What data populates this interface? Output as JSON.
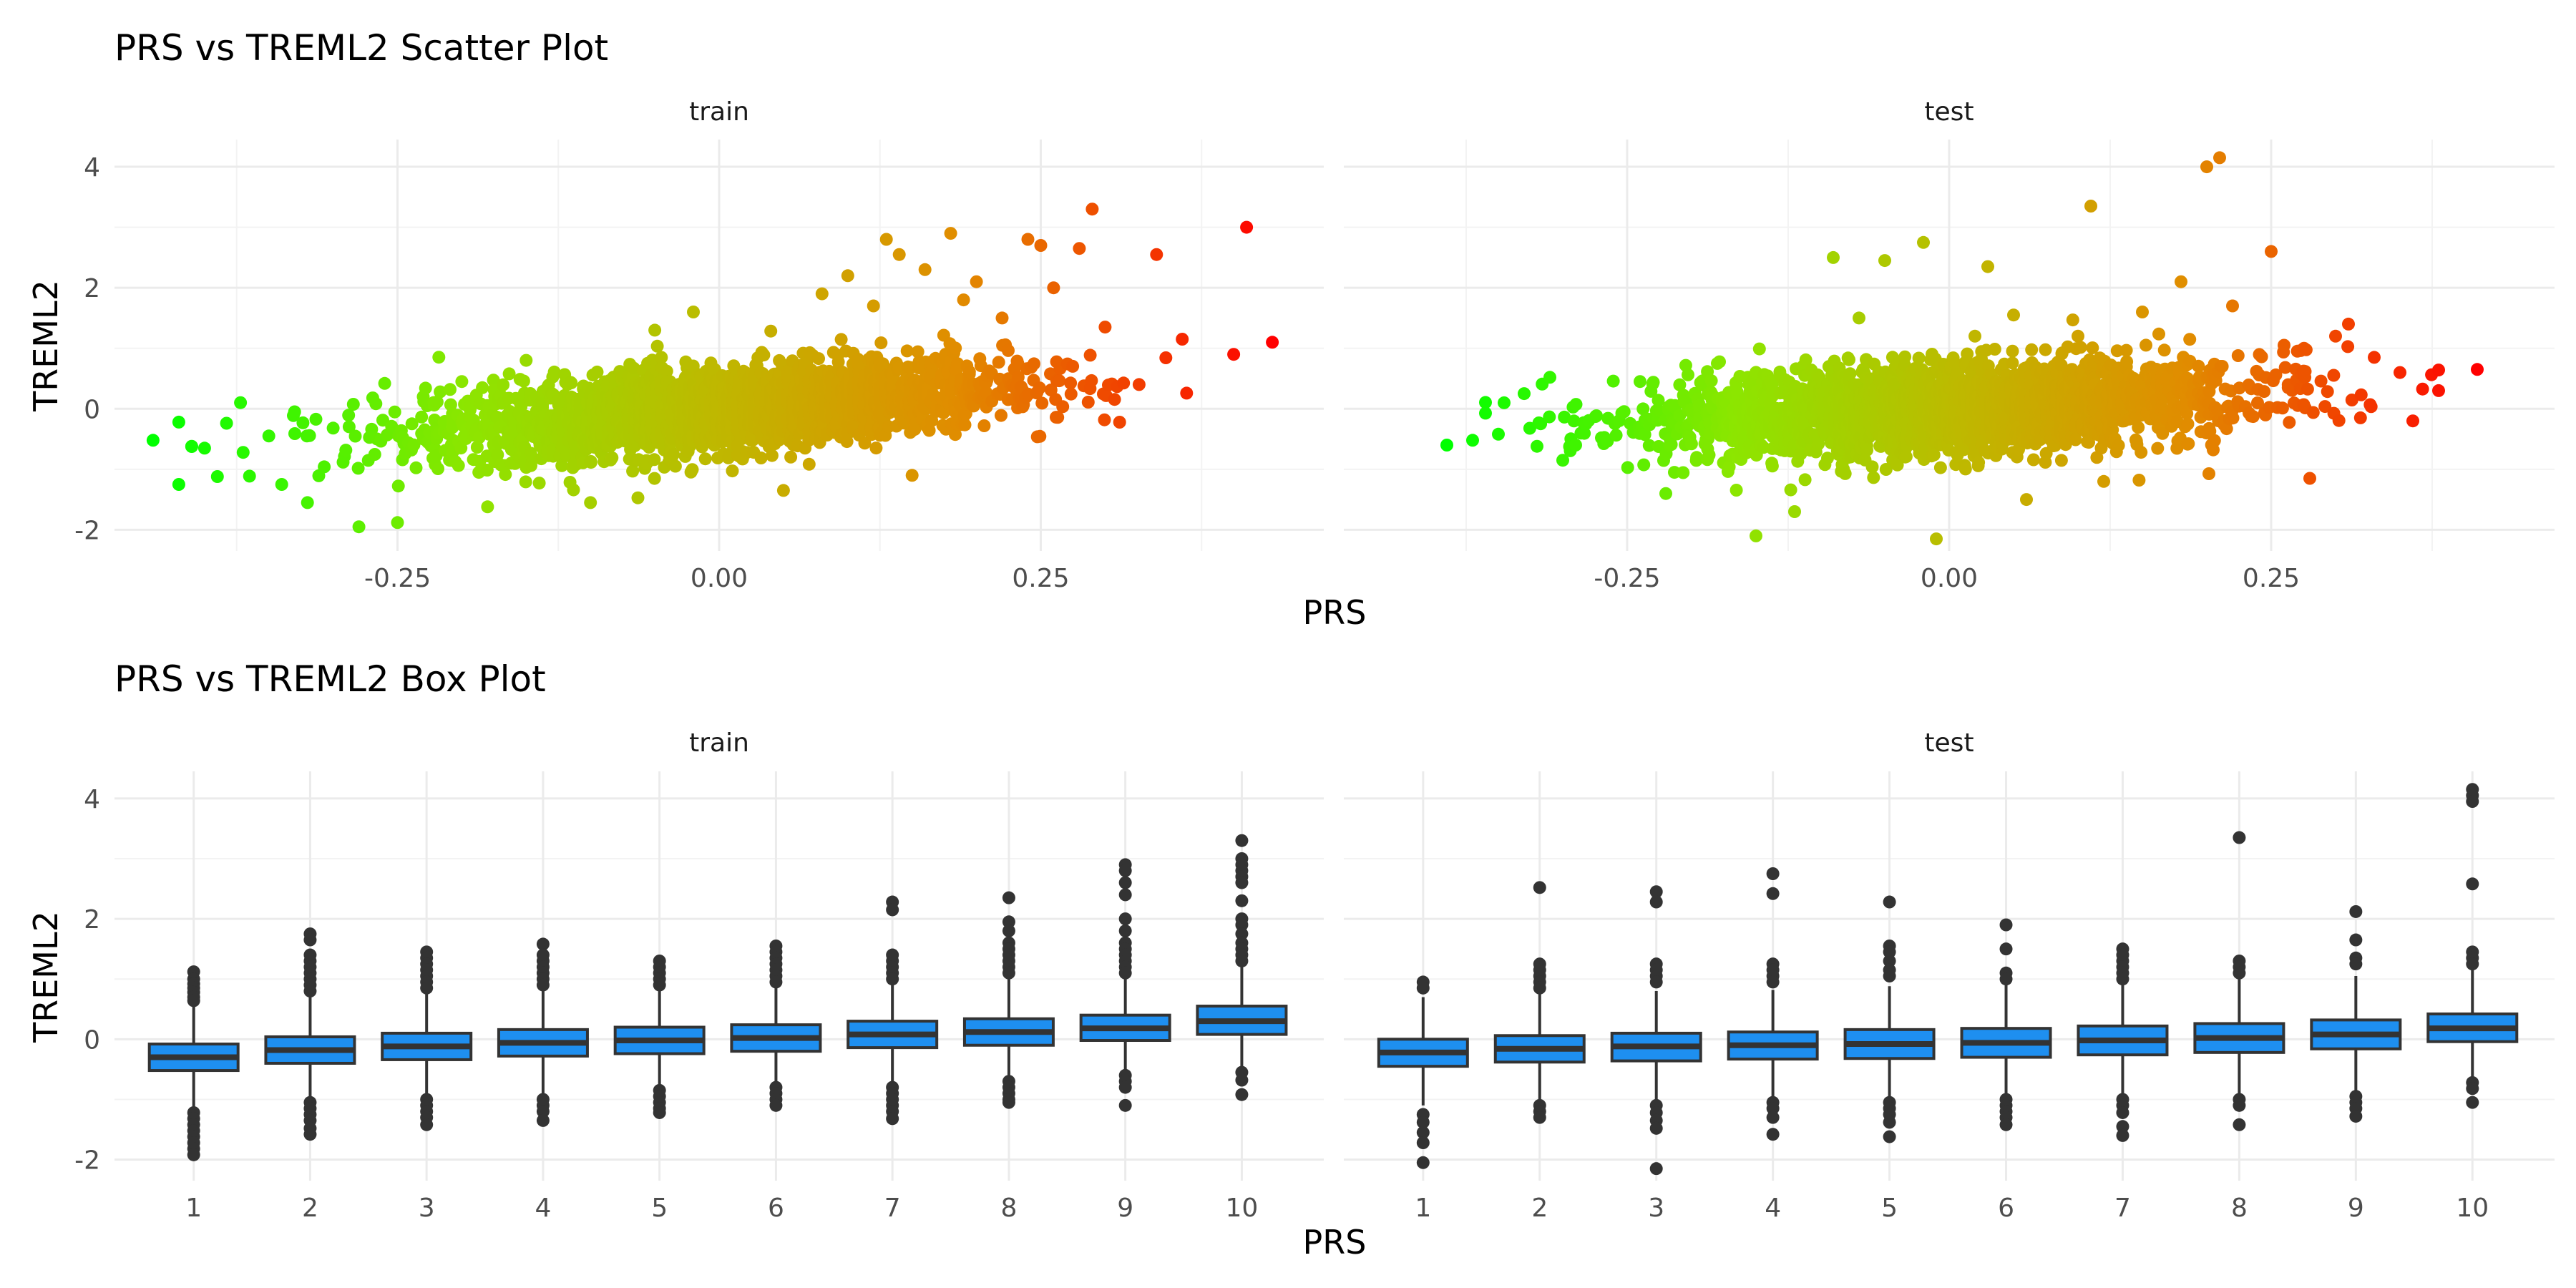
{
  "chart_data": [
    {
      "type": "scatter",
      "title": "PRS vs TREML2 Scatter Plot",
      "xlabel": "PRS",
      "ylabel": "TREML2",
      "facets": [
        "train",
        "test"
      ],
      "xlim": [
        -0.47,
        0.47
      ],
      "ylim": [
        -2.35,
        4.45
      ],
      "x_ticks": [
        -0.25,
        0.0,
        0.25
      ],
      "x_tick_labels": [
        "-0.25",
        "0.00",
        "0.25"
      ],
      "y_ticks": [
        -2,
        0,
        2,
        4
      ],
      "y_tick_labels": [
        "-2",
        "0",
        "2",
        "4"
      ],
      "grid": true,
      "legend": "none",
      "color_gradient": {
        "low": "#00ff00",
        "high": "#ff0000",
        "mapped_to": "PRS"
      },
      "series": [
        {
          "facet": "train",
          "trend": {
            "slope": 1.65,
            "intercept": 0.0,
            "spread": 0.34
          },
          "x_range": [
            -0.44,
            0.43
          ],
          "points": [
            [
              -0.44,
              -0.52
            ],
            [
              -0.42,
              -0.22
            ],
            [
              -0.42,
              -1.25
            ],
            [
              -0.41,
              -0.62
            ],
            [
              -0.4,
              -0.65
            ],
            [
              -0.39,
              -1.12
            ],
            [
              -0.37,
              -0.72
            ],
            [
              -0.35,
              -0.45
            ],
            [
              -0.34,
              -1.25
            ],
            [
              -0.33,
              -0.05
            ],
            [
              -0.32,
              -1.55
            ],
            [
              -0.3,
              -0.32
            ],
            [
              -0.28,
              -1.95
            ],
            [
              -0.26,
              0.42
            ],
            [
              -0.25,
              -1.88
            ],
            [
              -0.23,
              0.2
            ],
            [
              -0.2,
              0.45
            ],
            [
              -0.18,
              -1.62
            ],
            [
              -0.15,
              0.8
            ],
            [
              -0.1,
              -1.55
            ],
            [
              -0.05,
              1.3
            ],
            [
              -0.02,
              1.6
            ],
            [
              0.05,
              -1.35
            ],
            [
              0.08,
              1.9
            ],
            [
              0.1,
              2.2
            ],
            [
              0.12,
              1.7
            ],
            [
              0.13,
              2.8
            ],
            [
              0.14,
              2.55
            ],
            [
              0.15,
              -1.1
            ],
            [
              0.16,
              2.3
            ],
            [
              0.18,
              2.9
            ],
            [
              0.19,
              1.8
            ],
            [
              0.2,
              2.1
            ],
            [
              0.22,
              1.5
            ],
            [
              0.24,
              2.8
            ],
            [
              0.25,
              2.7
            ],
            [
              0.26,
              2.0
            ],
            [
              0.28,
              2.65
            ],
            [
              0.29,
              3.3
            ],
            [
              0.3,
              1.35
            ],
            [
              0.34,
              2.55
            ],
            [
              0.36,
              1.15
            ],
            [
              0.4,
              0.9
            ],
            [
              0.41,
              3.0
            ],
            [
              0.43,
              1.1
            ]
          ]
        },
        {
          "facet": "test",
          "trend": {
            "slope": 0.95,
            "intercept": 0.0,
            "spread": 0.36
          },
          "x_range": [
            -0.39,
            0.41
          ],
          "points": [
            [
              -0.39,
              -0.6
            ],
            [
              -0.37,
              -0.52
            ],
            [
              -0.35,
              -0.42
            ],
            [
              -0.33,
              0.25
            ],
            [
              -0.32,
              -0.62
            ],
            [
              -0.31,
              0.52
            ],
            [
              -0.3,
              -0.85
            ],
            [
              -0.29,
              -0.6
            ],
            [
              -0.27,
              -0.48
            ],
            [
              -0.24,
              0.45
            ],
            [
              -0.22,
              -1.4
            ],
            [
              -0.18,
              0.75
            ],
            [
              -0.15,
              -2.1
            ],
            [
              -0.12,
              -1.7
            ],
            [
              -0.09,
              2.5
            ],
            [
              -0.07,
              1.5
            ],
            [
              -0.05,
              2.45
            ],
            [
              -0.02,
              2.75
            ],
            [
              -0.01,
              -2.15
            ],
            [
              0.02,
              1.2
            ],
            [
              0.03,
              2.35
            ],
            [
              0.05,
              1.55
            ],
            [
              0.06,
              -1.5
            ],
            [
              0.1,
              1.2
            ],
            [
              0.11,
              3.35
            ],
            [
              0.12,
              -1.2
            ],
            [
              0.15,
              1.6
            ],
            [
              0.18,
              2.1
            ],
            [
              0.2,
              4.0
            ],
            [
              0.21,
              4.15
            ],
            [
              0.22,
              1.7
            ],
            [
              0.25,
              2.6
            ],
            [
              0.26,
              1.05
            ],
            [
              0.28,
              -1.15
            ],
            [
              0.3,
              1.2
            ],
            [
              0.31,
              1.4
            ],
            [
              0.33,
              0.85
            ],
            [
              0.35,
              0.6
            ],
            [
              0.36,
              -0.2
            ],
            [
              0.38,
              0.3
            ],
            [
              0.41,
              0.65
            ]
          ]
        }
      ]
    },
    {
      "type": "box",
      "title": "PRS vs TREML2 Box Plot",
      "xlabel": "PRS",
      "ylabel": "TREML2",
      "facets": [
        "train",
        "test"
      ],
      "categories": [
        "1",
        "2",
        "3",
        "4",
        "5",
        "6",
        "7",
        "8",
        "9",
        "10"
      ],
      "ylim": [
        -2.35,
        4.45
      ],
      "y_ticks": [
        -2,
        0,
        2,
        4
      ],
      "y_tick_labels": [
        "-2",
        "0",
        "2",
        "4"
      ],
      "grid": true,
      "legend": "none",
      "box_fill": "#1e8ff0",
      "series": [
        {
          "facet": "train",
          "boxes": [
            {
              "q1": -0.52,
              "median": -0.3,
              "q3": -0.08,
              "whisker_low": -1.15,
              "whisker_high": 0.58,
              "outliers": [
                1.12,
                1.0,
                0.92,
                0.85,
                0.78,
                0.7,
                0.64,
                -1.22,
                -1.32,
                -1.42,
                -1.52,
                -1.62,
                -1.72,
                -1.82,
                -1.92
              ]
            },
            {
              "q1": -0.4,
              "median": -0.18,
              "q3": 0.04,
              "whisker_low": -1.0,
              "whisker_high": 0.7,
              "outliers": [
                1.75,
                1.65,
                1.4,
                1.3,
                1.2,
                1.1,
                1.0,
                0.9,
                0.8,
                -1.05,
                -1.15,
                -1.25,
                -1.35,
                -1.48,
                -1.58
              ]
            },
            {
              "q1": -0.34,
              "median": -0.12,
              "q3": 0.1,
              "whisker_low": -0.95,
              "whisker_high": 0.75,
              "outliers": [
                1.45,
                1.35,
                1.25,
                1.15,
                1.05,
                0.95,
                0.85,
                -1.0,
                -1.1,
                -1.2,
                -1.3,
                -1.42
              ]
            },
            {
              "q1": -0.28,
              "median": -0.06,
              "q3": 0.16,
              "whisker_low": -0.92,
              "whisker_high": 0.8,
              "outliers": [
                1.58,
                1.4,
                1.3,
                1.2,
                1.1,
                1.0,
                0.9,
                -1.0,
                -1.1,
                -1.2,
                -1.35
              ]
            },
            {
              "q1": -0.24,
              "median": -0.02,
              "q3": 0.2,
              "whisker_low": -0.85,
              "whisker_high": 0.82,
              "outliers": [
                1.3,
                1.2,
                1.1,
                1.0,
                0.9,
                -0.85,
                -0.95,
                -1.05,
                -1.15,
                -1.22
              ]
            },
            {
              "q1": -0.2,
              "median": 0.02,
              "q3": 0.24,
              "whisker_low": -0.8,
              "whisker_high": 0.88,
              "outliers": [
                1.55,
                1.45,
                1.35,
                1.25,
                1.15,
                1.05,
                0.95,
                -0.8,
                -0.9,
                -1.0,
                -1.1
              ]
            },
            {
              "q1": -0.14,
              "median": 0.08,
              "q3": 0.3,
              "whisker_low": -0.75,
              "whisker_high": 0.95,
              "outliers": [
                2.28,
                2.15,
                1.4,
                1.3,
                1.2,
                1.1,
                1.0,
                -0.8,
                -0.9,
                -1.0,
                -1.1,
                -1.2,
                -1.32
              ]
            },
            {
              "q1": -0.1,
              "median": 0.12,
              "q3": 0.34,
              "whisker_low": -0.65,
              "whisker_high": 1.0,
              "outliers": [
                2.35,
                1.95,
                1.8,
                1.6,
                1.5,
                1.4,
                1.3,
                1.2,
                1.1,
                -0.7,
                -0.8,
                -0.9,
                -1.0,
                -1.05
              ]
            },
            {
              "q1": -0.02,
              "median": 0.18,
              "q3": 0.4,
              "whisker_low": -0.55,
              "whisker_high": 1.05,
              "outliers": [
                2.9,
                2.8,
                2.6,
                2.4,
                2.0,
                1.8,
                1.6,
                1.5,
                1.4,
                1.3,
                1.2,
                1.1,
                -0.6,
                -0.7,
                -0.8,
                -1.1
              ]
            },
            {
              "q1": 0.08,
              "median": 0.3,
              "q3": 0.55,
              "whisker_low": -0.45,
              "whisker_high": 1.2,
              "outliers": [
                3.3,
                3.0,
                2.9,
                2.8,
                2.7,
                2.6,
                2.3,
                2.0,
                1.9,
                1.75,
                1.6,
                1.5,
                1.4,
                1.3,
                -0.55,
                -0.68,
                -0.92
              ]
            }
          ]
        },
        {
          "facet": "test",
          "boxes": [
            {
              "q1": -0.45,
              "median": -0.22,
              "q3": 0.0,
              "whisker_low": -1.1,
              "whisker_high": 0.7,
              "outliers": [
                0.95,
                0.85,
                -1.25,
                -1.38,
                -1.55,
                -1.72,
                -2.05
              ]
            },
            {
              "q1": -0.38,
              "median": -0.16,
              "q3": 0.06,
              "whisker_low": -1.05,
              "whisker_high": 0.75,
              "outliers": [
                2.52,
                1.25,
                1.15,
                1.05,
                0.95,
                0.85,
                -1.1,
                -1.2,
                -1.3
              ]
            },
            {
              "q1": -0.36,
              "median": -0.12,
              "q3": 0.1,
              "whisker_low": -1.05,
              "whisker_high": 0.8,
              "outliers": [
                2.45,
                2.28,
                1.25,
                1.15,
                1.05,
                0.95,
                -1.1,
                -1.22,
                -1.35,
                -1.48,
                -2.15
              ]
            },
            {
              "q1": -0.33,
              "median": -0.1,
              "q3": 0.12,
              "whisker_low": -1.0,
              "whisker_high": 0.82,
              "outliers": [
                2.75,
                2.42,
                1.25,
                1.15,
                1.05,
                0.95,
                -1.05,
                -1.15,
                -1.3,
                -1.58
              ]
            },
            {
              "q1": -0.32,
              "median": -0.08,
              "q3": 0.16,
              "whisker_low": -1.0,
              "whisker_high": 0.88,
              "outliers": [
                2.28,
                1.55,
                1.45,
                1.3,
                1.15,
                1.05,
                -1.05,
                -1.15,
                -1.25,
                -1.38,
                -1.62
              ]
            },
            {
              "q1": -0.3,
              "median": -0.06,
              "q3": 0.18,
              "whisker_low": -0.98,
              "whisker_high": 0.9,
              "outliers": [
                1.9,
                1.5,
                1.1,
                1.0,
                -1.0,
                -1.1,
                -1.2,
                -1.3,
                -1.42
              ]
            },
            {
              "q1": -0.26,
              "median": -0.02,
              "q3": 0.22,
              "whisker_low": -0.95,
              "whisker_high": 0.95,
              "outliers": [
                1.5,
                1.4,
                1.3,
                1.2,
                1.1,
                1.0,
                -1.0,
                -1.1,
                -1.22,
                -1.45,
                -1.6
              ]
            },
            {
              "q1": -0.22,
              "median": 0.02,
              "q3": 0.26,
              "whisker_low": -0.92,
              "whisker_high": 1.0,
              "outliers": [
                3.35,
                1.3,
                1.2,
                1.1,
                -1.0,
                -1.1,
                -1.42
              ]
            },
            {
              "q1": -0.16,
              "median": 0.08,
              "q3": 0.32,
              "whisker_low": -0.88,
              "whisker_high": 1.05,
              "outliers": [
                2.12,
                1.65,
                1.35,
                1.25,
                -0.95,
                -1.05,
                -1.15,
                -1.28
              ]
            },
            {
              "q1": -0.04,
              "median": 0.18,
              "q3": 0.42,
              "whisker_low": -0.65,
              "whisker_high": 1.15,
              "outliers": [
                4.15,
                4.05,
                3.95,
                2.58,
                1.45,
                1.35,
                1.25,
                -0.72,
                -0.82,
                -1.05
              ]
            }
          ]
        }
      ]
    }
  ]
}
